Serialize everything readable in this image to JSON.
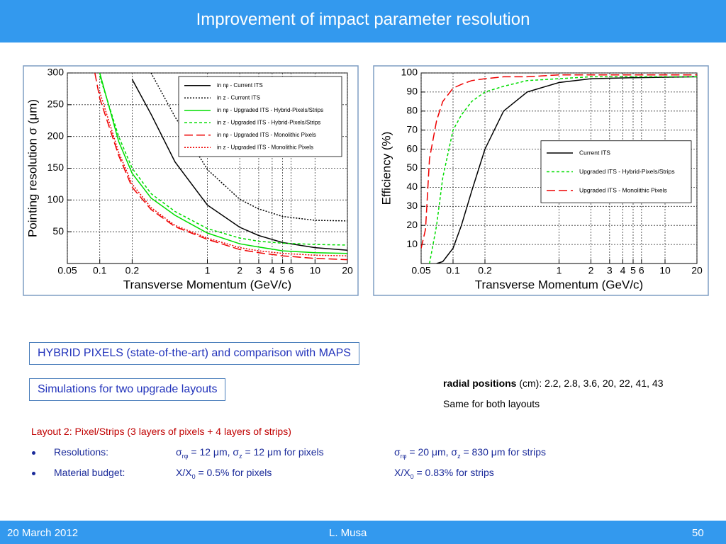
{
  "header": {
    "title": "Improvement of impact parameter resolution"
  },
  "chart_data": [
    {
      "type": "line",
      "xlabel": "Transverse Momentum (GeV/c)",
      "ylabel": "Pointing resolution σ (μm)",
      "xscale": "log",
      "xlim": [
        0.05,
        20
      ],
      "xticks": [
        0.05,
        0.1,
        0.2,
        1,
        2,
        3,
        4,
        5,
        6,
        10,
        20
      ],
      "ylim": [
        0,
        300
      ],
      "yticks": [
        50,
        100,
        150,
        200,
        250,
        300
      ],
      "grid": true,
      "legend": "upper right",
      "x": [
        0.09,
        0.1,
        0.15,
        0.2,
        0.3,
        0.5,
        1,
        2,
        3,
        5,
        10,
        20
      ],
      "series": [
        {
          "name": "in rφ - Current ITS",
          "color": "#000000",
          "style": "solid",
          "values": [
            null,
            null,
            null,
            290,
            235,
            160,
            92,
            57,
            44,
            33,
            25,
            21
          ]
        },
        {
          "name": "in z - Current ITS",
          "color": "#000000",
          "style": "dotted",
          "values": [
            null,
            null,
            null,
            null,
            300,
            231,
            148,
            101,
            86,
            74,
            68,
            67
          ]
        },
        {
          "name": "in rφ - Upgraded ITS - Hybrid-Pixels/Strips",
          "color": "#00dd00",
          "style": "solid",
          "values": [
            null,
            300,
            192,
            142,
            103,
            76,
            48,
            31,
            26,
            20,
            17,
            16
          ]
        },
        {
          "name": "in z - Upgraded ITS - Hybrid-Pixels/Strips",
          "color": "#00dd00",
          "style": "dashed",
          "values": [
            null,
            295,
            200,
            150,
            110,
            82,
            55,
            40,
            35,
            32,
            30,
            29
          ]
        },
        {
          "name": "in rφ - Upgraded ITS - Monolithic Pixels",
          "color": "#ee0000",
          "style": "long-dash",
          "values": [
            300,
            260,
            170,
            120,
            85,
            58,
            38,
            22,
            17,
            12,
            8,
            6
          ]
        },
        {
          "name": "in z - Upgraded ITS - Monolithic Pixels",
          "color": "#ee0000",
          "style": "dotted",
          "values": [
            null,
            270,
            175,
            125,
            88,
            60,
            40,
            25,
            20,
            16,
            13,
            12
          ]
        }
      ]
    },
    {
      "type": "line",
      "xlabel": "Transverse Momentum (GeV/c)",
      "ylabel": "Efficiency (%)",
      "xscale": "log",
      "xlim": [
        0.05,
        20
      ],
      "xticks": [
        0.05,
        0.1,
        0.2,
        1,
        2,
        3,
        4,
        5,
        6,
        10,
        20
      ],
      "ylim": [
        0,
        100
      ],
      "yticks": [
        10,
        20,
        30,
        40,
        50,
        60,
        70,
        80,
        90,
        100
      ],
      "grid": true,
      "legend": "center right",
      "x": [
        0.05,
        0.055,
        0.06,
        0.07,
        0.08,
        0.1,
        0.12,
        0.15,
        0.2,
        0.3,
        0.5,
        1,
        2,
        5,
        20
      ],
      "series": [
        {
          "name": "Current ITS",
          "color": "#000000",
          "style": "solid",
          "values": [
            null,
            null,
            null,
            0,
            1,
            8,
            20,
            38,
            60,
            80,
            90,
            95,
            97,
            97.5,
            98
          ]
        },
        {
          "name": "Upgraded ITS - Hybrid-Pixels/Strips",
          "color": "#00dd00",
          "style": "dashed",
          "values": [
            null,
            null,
            0,
            20,
            45,
            70,
            78,
            85,
            90,
            93,
            96,
            97,
            98,
            98,
            98
          ]
        },
        {
          "name": "Upgraded ITS - Monolithic Pixels",
          "color": "#ee0000",
          "style": "long-dash",
          "values": [
            8,
            18,
            55,
            75,
            85,
            92,
            94,
            96,
            97,
            98,
            98,
            99,
            99,
            99,
            99
          ]
        }
      ]
    }
  ],
  "boxes": [
    "HYBRID PIXELS (state-of-the-art) and comparison with MAPS",
    "Simulations for two upgrade layouts"
  ],
  "radial": {
    "label": "radial positions",
    "text": " (cm): 2.2, 2.8, 3.6, 20, 22, 41, 43",
    "note": "Same for both layouts"
  },
  "layout": {
    "title": "Layout 2: Pixel/Strips (3 layers of pixels + 4 layers of strips)",
    "items": [
      {
        "label": "Resolutions:",
        "pixels": [
          "σ",
          "rφ",
          " = 12 μm, σ",
          "z",
          " = 12 μm for pixels"
        ],
        "strips": [
          "σ",
          "rφ",
          " = 20 μm, σ",
          "z",
          " = 830 μm for strips"
        ]
      },
      {
        "label": "Material budget:",
        "pixels": [
          "X/X",
          "0",
          " = 0.5% for pixels"
        ],
        "strips": [
          "X/X",
          "0",
          " = 0.83% for strips"
        ]
      }
    ]
  },
  "footer": {
    "date": "20 March 2012",
    "author": "L. Musa",
    "page": "50"
  }
}
